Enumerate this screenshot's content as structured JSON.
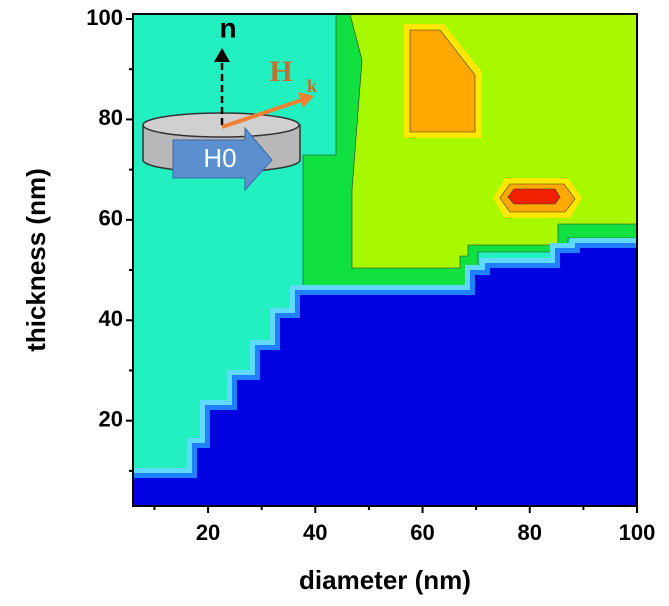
{
  "chart_data": {
    "type": "contour",
    "xlabel": "diameter (nm)",
    "ylabel": "thickness (nm)",
    "xlim": [
      6,
      100
    ],
    "ylim": [
      3,
      101
    ],
    "xticks": [
      20,
      40,
      60,
      80,
      100
    ],
    "yticks": [
      20,
      40,
      60,
      80,
      100
    ],
    "xminorticks": [
      10,
      30,
      50,
      70,
      90
    ],
    "yminorticks": [
      10,
      30,
      50,
      70,
      90
    ],
    "annotations": {
      "normal": "n",
      "anisotropy": "H",
      "anisotropy_sub": "k",
      "field": "H0"
    }
  }
}
